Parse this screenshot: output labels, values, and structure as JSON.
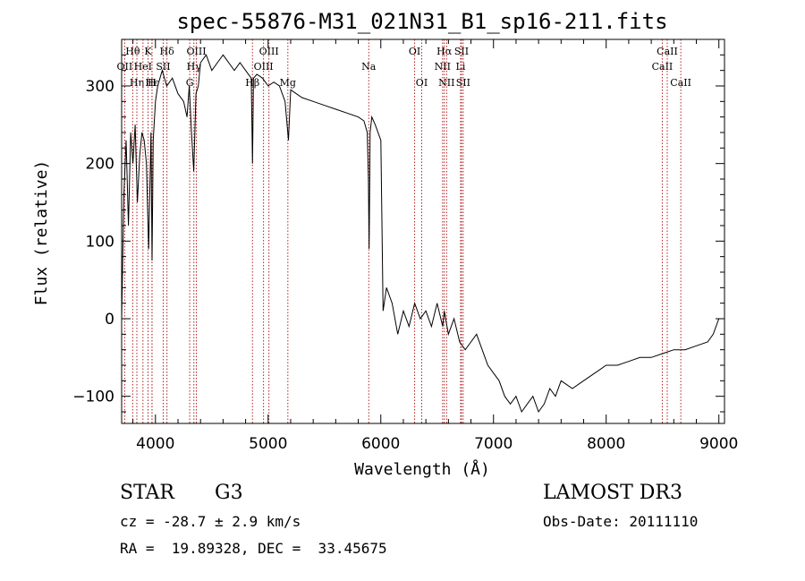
{
  "chart_data": {
    "type": "line",
    "title": "spec-55876-M31_021N31_B1_sp16-211.fits",
    "xlabel": "Wavelength (Å)",
    "ylabel": "Flux (relative)",
    "xlim": [
      3700,
      9050
    ],
    "ylim": [
      -135,
      360
    ],
    "x_ticks": [
      4000,
      5000,
      6000,
      7000,
      8000,
      9000
    ],
    "y_ticks": [
      -100,
      0,
      100,
      200,
      300
    ],
    "grid": false,
    "line_color": "#000000",
    "marker_color": "#b22222",
    "x": [
      3700,
      3720,
      3740,
      3760,
      3780,
      3800,
      3820,
      3840,
      3860,
      3880,
      3900,
      3920,
      3940,
      3960,
      3970,
      3980,
      4000,
      4020,
      4060,
      4100,
      4150,
      4200,
      4250,
      4280,
      4300,
      4320,
      4340,
      4360,
      4380,
      4400,
      4450,
      4500,
      4550,
      4600,
      4650,
      4700,
      4750,
      4800,
      4850,
      4861,
      4870,
      4900,
      4950,
      5000,
      5050,
      5100,
      5150,
      5180,
      5200,
      5250,
      5300,
      5400,
      5500,
      5600,
      5700,
      5800,
      5850,
      5880,
      5890,
      5896,
      5905,
      5920,
      5950,
      6000,
      6020,
      6050,
      6100,
      6150,
      6200,
      6250,
      6300,
      6350,
      6400,
      6450,
      6500,
      6550,
      6563,
      6600,
      6650,
      6700,
      6750,
      6800,
      6850,
      6900,
      6950,
      7000,
      7050,
      7100,
      7150,
      7200,
      7250,
      7300,
      7350,
      7400,
      7450,
      7500,
      7550,
      7600,
      7650,
      7700,
      7800,
      7900,
      8000,
      8100,
      8200,
      8300,
      8400,
      8500,
      8600,
      8700,
      8800,
      8900,
      8950,
      9000
    ],
    "y": [
      0,
      160,
      230,
      120,
      240,
      200,
      250,
      150,
      210,
      240,
      230,
      200,
      90,
      240,
      75,
      230,
      280,
      300,
      320,
      300,
      310,
      290,
      280,
      260,
      300,
      240,
      190,
      290,
      300,
      330,
      340,
      320,
      330,
      340,
      330,
      320,
      330,
      320,
      310,
      200,
      310,
      315,
      310,
      300,
      305,
      300,
      280,
      230,
      295,
      290,
      285,
      280,
      275,
      270,
      265,
      260,
      255,
      240,
      180,
      90,
      240,
      260,
      250,
      230,
      10,
      40,
      20,
      -20,
      10,
      -10,
      20,
      0,
      10,
      -10,
      20,
      -10,
      10,
      -20,
      0,
      -30,
      -40,
      -30,
      -20,
      -40,
      -60,
      -70,
      -80,
      -100,
      -110,
      -100,
      -120,
      -110,
      -100,
      -120,
      -110,
      -90,
      -100,
      -80,
      -85,
      -90,
      -80,
      -70,
      -60,
      -60,
      -55,
      -50,
      -50,
      -45,
      -40,
      -40,
      -35,
      -30,
      -20,
      0
    ],
    "line_markers": [
      {
        "label": "Hθ",
        "wavelength": 3798,
        "row": 1
      },
      {
        "label": "OII",
        "wavelength": 3727,
        "row": 2
      },
      {
        "label": "Hη",
        "wavelength": 3835,
        "row": 3
      },
      {
        "label": "K",
        "wavelength": 3934,
        "row": 1
      },
      {
        "label": "HeI",
        "wavelength": 3889,
        "row": 2
      },
      {
        "label": "SII",
        "wavelength": 4069,
        "row": 2
      },
      {
        "label": "H",
        "wavelength": 3969,
        "row": 3
      },
      {
        "label": "Hδ",
        "wavelength": 4102,
        "row": 1
      },
      {
        "label": "OIII",
        "wavelength": 4363,
        "row": 1
      },
      {
        "label": "Hγ",
        "wavelength": 4341,
        "row": 2
      },
      {
        "label": "G",
        "wavelength": 4304,
        "row": 3
      },
      {
        "label": "Hε",
        "wavelength": 3970,
        "row": 3
      },
      {
        "label": "OIII",
        "wavelength": 5007,
        "row": 1
      },
      {
        "label": "OIII",
        "wavelength": 4959,
        "row": 2
      },
      {
        "label": "Hβ",
        "wavelength": 4861,
        "row": 3
      },
      {
        "label": "Mg",
        "wavelength": 5175,
        "row": 3
      },
      {
        "label": "Na",
        "wavelength": 5893,
        "row": 2
      },
      {
        "label": "OI",
        "wavelength": 6300,
        "row": 1
      },
      {
        "label": "OI",
        "wavelength": 6363,
        "row": 3
      },
      {
        "label": "Hα",
        "wavelength": 6563,
        "row": 1
      },
      {
        "label": "SII",
        "wavelength": 6716,
        "row": 1
      },
      {
        "label": "NII",
        "wavelength": 6548,
        "row": 2
      },
      {
        "label": "Li",
        "wavelength": 6708,
        "row": 2
      },
      {
        "label": "NII",
        "wavelength": 6584,
        "row": 3
      },
      {
        "label": "SII",
        "wavelength": 6731,
        "row": 3
      },
      {
        "label": "CaII",
        "wavelength": 8542,
        "row": 1
      },
      {
        "label": "CaII",
        "wavelength": 8498,
        "row": 2
      },
      {
        "label": "CaII",
        "wavelength": 8662,
        "row": 3
      }
    ]
  },
  "info": {
    "object_class": "STAR",
    "subclass": "G3",
    "survey": "LAMOST DR3",
    "redshift_line": "cz = -28.7 ± 2.9 km/s",
    "obs_date_line": "Obs-Date: 20111110",
    "coords_line": "RA =  19.89328, DEC =  33.45675"
  }
}
